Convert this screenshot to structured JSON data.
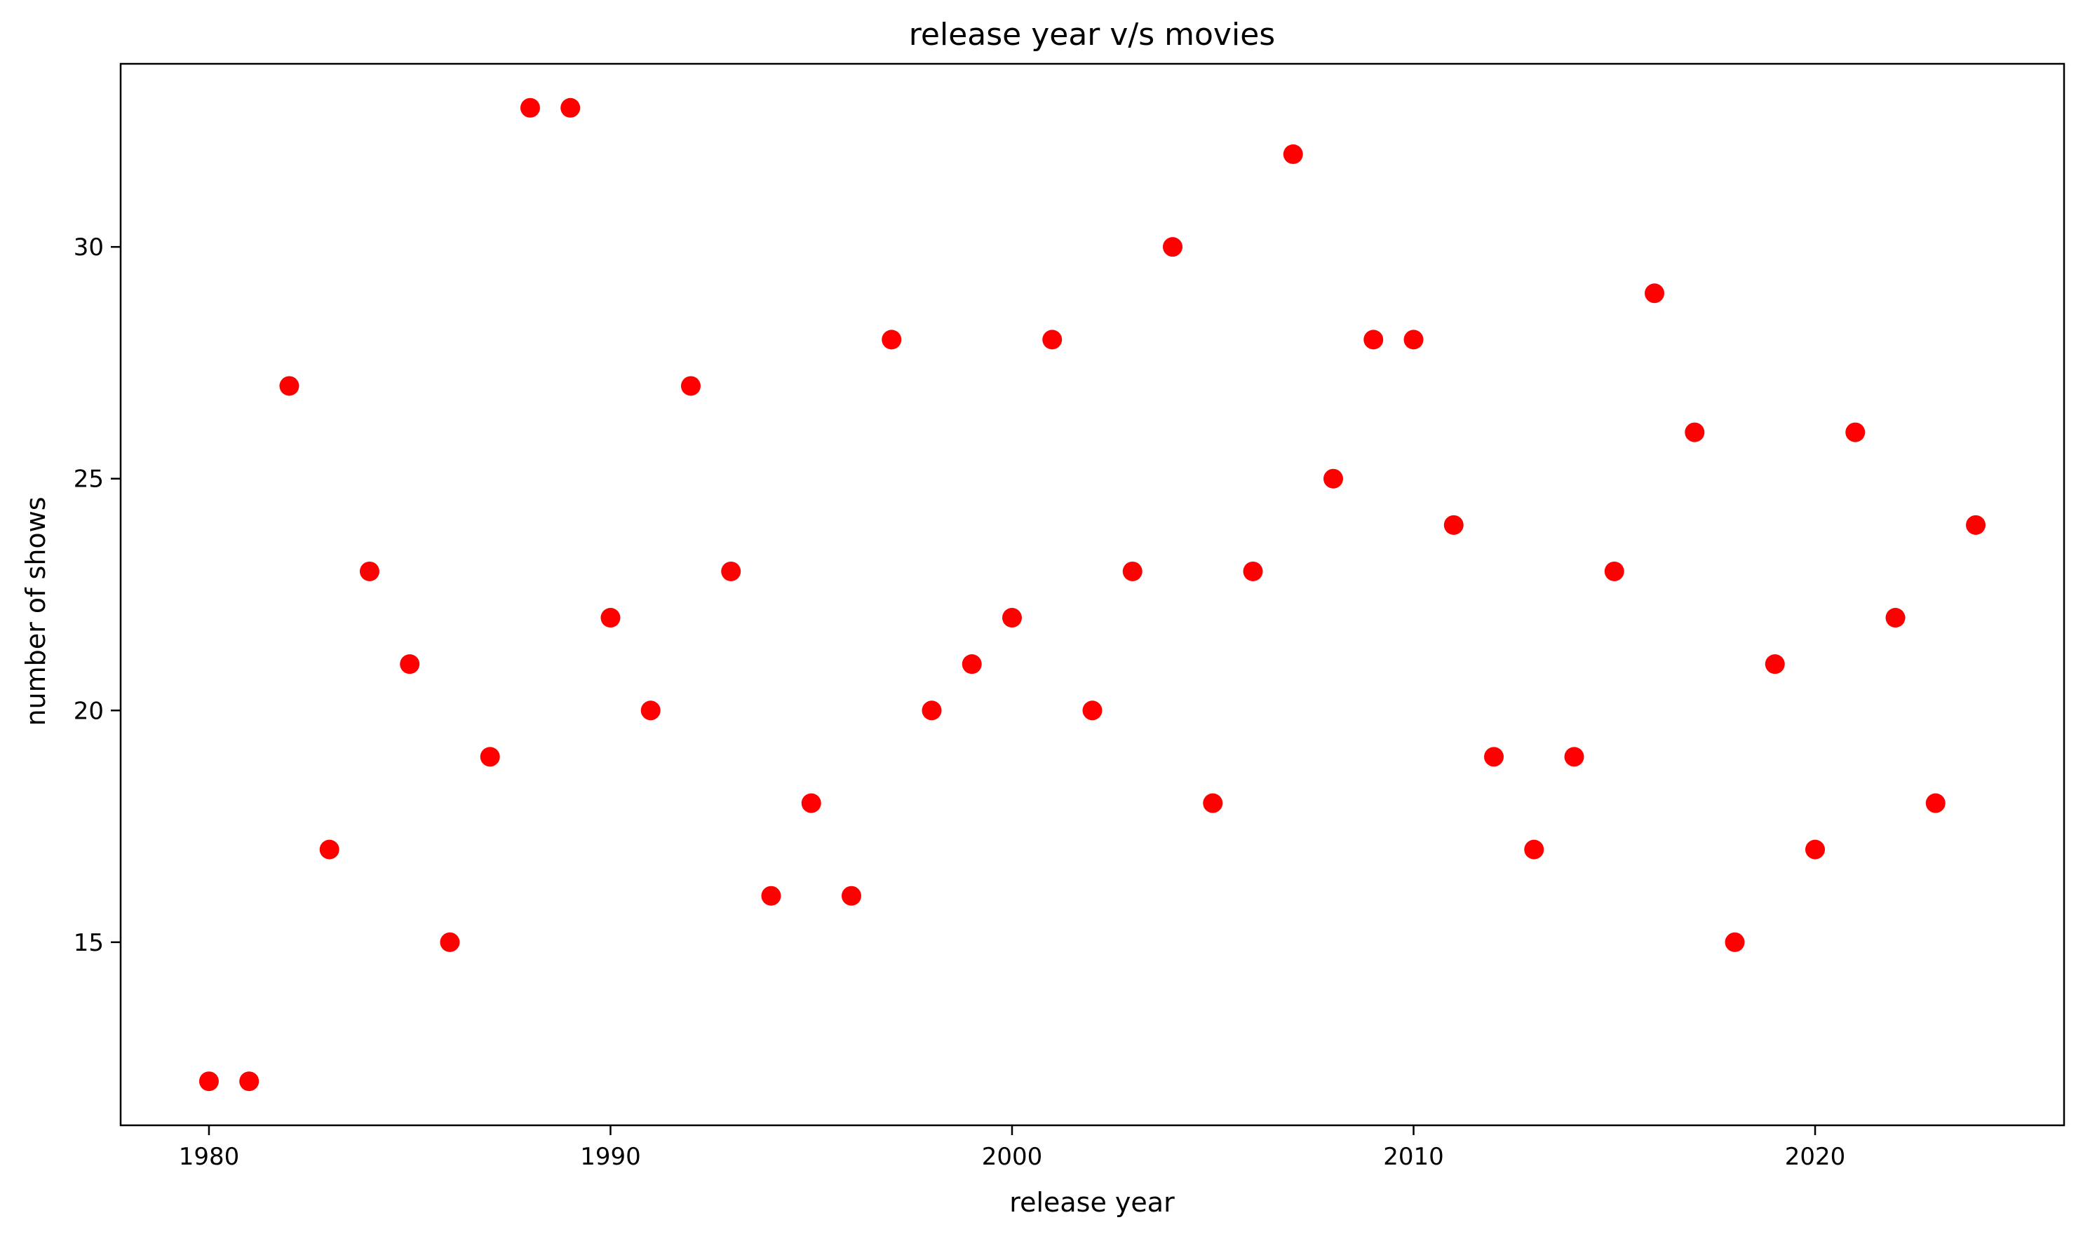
{
  "chart_data": {
    "type": "scatter",
    "title": "release year v/s movies",
    "xlabel": "release year",
    "ylabel": "number of shows",
    "xlim": [
      1977.8,
      2026.2
    ],
    "ylim": [
      11.05,
      33.95
    ],
    "xticks": [
      1980,
      1990,
      2000,
      2010,
      2020
    ],
    "yticks": [
      15,
      20,
      25,
      30
    ],
    "grid": false,
    "legend": false,
    "marker_color": "#ff0000",
    "x": [
      1980,
      1981,
      1982,
      1983,
      1984,
      1985,
      1986,
      1987,
      1988,
      1989,
      1990,
      1991,
      1992,
      1993,
      1994,
      1995,
      1996,
      1997,
      1998,
      1999,
      2000,
      2001,
      2002,
      2003,
      2004,
      2005,
      2006,
      2007,
      2008,
      2009,
      2010,
      2011,
      2012,
      2013,
      2014,
      2015,
      2016,
      2017,
      2018,
      2019,
      2020,
      2021,
      2022,
      2023,
      2024
    ],
    "y": [
      12,
      12,
      27,
      17,
      23,
      21,
      15,
      19,
      33,
      33,
      22,
      20,
      27,
      23,
      16,
      18,
      16,
      28,
      20,
      21,
      22,
      28,
      20,
      23,
      30,
      18,
      23,
      32,
      25,
      28,
      28,
      24,
      19,
      17,
      19,
      23,
      29,
      26,
      15,
      21,
      17,
      26,
      22,
      18,
      24
    ]
  }
}
